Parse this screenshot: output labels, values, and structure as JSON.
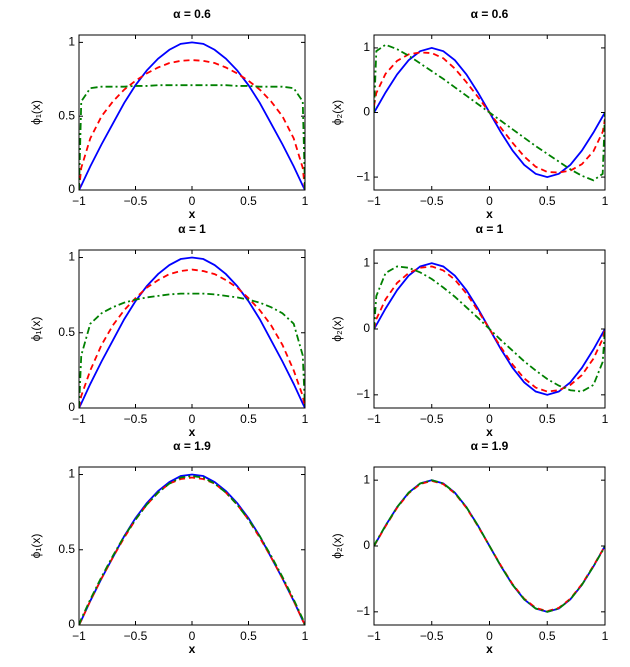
{
  "chart_data": [
    {
      "type": "line",
      "title": "α = 0.6",
      "x_label": "x",
      "y_label": "ϕ₁(x)",
      "x": [
        -1,
        -0.98,
        -0.9,
        -0.8,
        -0.7,
        -0.6,
        -0.5,
        -0.4,
        -0.3,
        -0.2,
        -0.1,
        0,
        0.1,
        0.2,
        0.3,
        0.4,
        0.5,
        0.6,
        0.7,
        0.8,
        0.9,
        0.98,
        1
      ],
      "series": [
        {
          "color": "#0000ff",
          "linestyle": "solid",
          "values": [
            0,
            0.03,
            0.16,
            0.31,
            0.45,
            0.59,
            0.71,
            0.81,
            0.89,
            0.95,
            0.99,
            1,
            0.99,
            0.95,
            0.89,
            0.81,
            0.71,
            0.59,
            0.45,
            0.31,
            0.16,
            0.03,
            0
          ]
        },
        {
          "color": "#ff0000",
          "linestyle": "dashed",
          "values": [
            0,
            0.15,
            0.35,
            0.5,
            0.6,
            0.68,
            0.74,
            0.79,
            0.83,
            0.86,
            0.875,
            0.88,
            0.875,
            0.86,
            0.83,
            0.79,
            0.74,
            0.68,
            0.6,
            0.5,
            0.35,
            0.15,
            0
          ]
        },
        {
          "color": "#008000",
          "linestyle": "dashdot",
          "values": [
            0,
            0.6,
            0.69,
            0.7,
            0.7,
            0.7,
            0.705,
            0.705,
            0.71,
            0.71,
            0.71,
            0.71,
            0.71,
            0.71,
            0.71,
            0.705,
            0.705,
            0.7,
            0.7,
            0.7,
            0.69,
            0.6,
            0
          ]
        }
      ],
      "xlim": [
        -1,
        1
      ],
      "ylim": [
        0,
        1.05
      ],
      "xticks": [
        {
          "value": -1,
          "label": "−1"
        },
        {
          "value": -0.5,
          "label": "−0.5"
        },
        0,
        0.5,
        1
      ],
      "yticks": [
        0,
        0.5,
        1
      ]
    },
    {
      "type": "line",
      "title": "α = 0.6",
      "x_label": "x",
      "y_label": "ϕ₂(x)",
      "x": [
        -1,
        -0.98,
        -0.9,
        -0.8,
        -0.7,
        -0.6,
        -0.5,
        -0.4,
        -0.3,
        -0.2,
        -0.1,
        0,
        0.1,
        0.2,
        0.3,
        0.4,
        0.5,
        0.6,
        0.7,
        0.8,
        0.9,
        0.98,
        1
      ],
      "series": [
        {
          "color": "#0000ff",
          "linestyle": "solid",
          "values": [
            0,
            0.06,
            0.31,
            0.59,
            0.81,
            0.95,
            1,
            0.95,
            0.81,
            0.59,
            0.31,
            0,
            -0.31,
            -0.59,
            -0.81,
            -0.95,
            -1,
            -0.95,
            -0.81,
            -0.59,
            -0.31,
            -0.06,
            0
          ]
        },
        {
          "color": "#ff0000",
          "linestyle": "dashed",
          "values": [
            0.1,
            0.3,
            0.6,
            0.8,
            0.9,
            0.93,
            0.92,
            0.84,
            0.68,
            0.47,
            0.24,
            0,
            -0.24,
            -0.47,
            -0.68,
            -0.84,
            -0.92,
            -0.93,
            -0.9,
            -0.8,
            -0.6,
            -0.3,
            -0.1
          ]
        },
        {
          "color": "#008000",
          "linestyle": "dashdot",
          "values": [
            0,
            0.95,
            1.05,
            0.98,
            0.88,
            0.76,
            0.64,
            0.52,
            0.39,
            0.26,
            0.13,
            0,
            -0.13,
            -0.26,
            -0.39,
            -0.52,
            -0.64,
            -0.76,
            -0.88,
            -0.98,
            -1.05,
            -0.95,
            0
          ]
        }
      ],
      "xlim": [
        -1,
        1
      ],
      "ylim": [
        -1.2,
        1.2
      ],
      "xticks": [
        {
          "value": -1,
          "label": "−1"
        },
        {
          "value": -0.5,
          "label": "−0.5"
        },
        0,
        0.5,
        1
      ],
      "yticks": [
        {
          "value": -1,
          "label": "−1"
        },
        0,
        1
      ]
    },
    {
      "type": "line",
      "title": "α = 1",
      "x_label": "x",
      "y_label": "ϕ₁(x)",
      "x": [
        -1,
        -0.98,
        -0.9,
        -0.8,
        -0.7,
        -0.6,
        -0.5,
        -0.4,
        -0.3,
        -0.2,
        -0.1,
        0,
        0.1,
        0.2,
        0.3,
        0.4,
        0.5,
        0.6,
        0.7,
        0.8,
        0.9,
        0.98,
        1
      ],
      "series": [
        {
          "color": "#0000ff",
          "linestyle": "solid",
          "values": [
            0,
            0.03,
            0.16,
            0.31,
            0.45,
            0.59,
            0.71,
            0.81,
            0.89,
            0.95,
            0.99,
            1,
            0.99,
            0.95,
            0.89,
            0.81,
            0.71,
            0.59,
            0.45,
            0.31,
            0.16,
            0.03,
            0
          ]
        },
        {
          "color": "#ff0000",
          "linestyle": "dashed",
          "values": [
            0,
            0.08,
            0.25,
            0.42,
            0.55,
            0.65,
            0.73,
            0.8,
            0.85,
            0.89,
            0.91,
            0.92,
            0.91,
            0.89,
            0.85,
            0.8,
            0.73,
            0.65,
            0.55,
            0.42,
            0.25,
            0.08,
            0
          ]
        },
        {
          "color": "#008000",
          "linestyle": "dashdot",
          "values": [
            0,
            0.35,
            0.56,
            0.63,
            0.67,
            0.7,
            0.72,
            0.735,
            0.745,
            0.755,
            0.76,
            0.76,
            0.76,
            0.755,
            0.745,
            0.735,
            0.72,
            0.7,
            0.67,
            0.63,
            0.56,
            0.35,
            0
          ]
        }
      ],
      "xlim": [
        -1,
        1
      ],
      "ylim": [
        0,
        1.05
      ],
      "xticks": [
        {
          "value": -1,
          "label": "−1"
        },
        {
          "value": -0.5,
          "label": "−0.5"
        },
        0,
        0.5,
        1
      ],
      "yticks": [
        0,
        0.5,
        1
      ]
    },
    {
      "type": "line",
      "title": "α = 1",
      "x_label": "x",
      "y_label": "ϕ₂(x)",
      "x": [
        -1,
        -0.98,
        -0.9,
        -0.8,
        -0.7,
        -0.6,
        -0.5,
        -0.4,
        -0.3,
        -0.2,
        -0.1,
        0,
        0.1,
        0.2,
        0.3,
        0.4,
        0.5,
        0.6,
        0.7,
        0.8,
        0.9,
        0.98,
        1
      ],
      "series": [
        {
          "color": "#0000ff",
          "linestyle": "solid",
          "values": [
            0,
            0.06,
            0.31,
            0.59,
            0.81,
            0.95,
            1,
            0.95,
            0.81,
            0.59,
            0.31,
            0,
            -0.31,
            -0.59,
            -0.81,
            -0.95,
            -1,
            -0.95,
            -0.81,
            -0.59,
            -0.31,
            -0.06,
            0
          ]
        },
        {
          "color": "#ff0000",
          "linestyle": "dashed",
          "values": [
            0,
            0.15,
            0.45,
            0.7,
            0.85,
            0.93,
            0.95,
            0.89,
            0.75,
            0.54,
            0.28,
            0,
            -0.28,
            -0.54,
            -0.75,
            -0.89,
            -0.95,
            -0.93,
            -0.85,
            -0.7,
            -0.45,
            -0.15,
            0
          ]
        },
        {
          "color": "#008000",
          "linestyle": "dashdot",
          "values": [
            0,
            0.5,
            0.85,
            0.95,
            0.93,
            0.86,
            0.76,
            0.63,
            0.49,
            0.33,
            0.17,
            0,
            -0.17,
            -0.33,
            -0.49,
            -0.63,
            -0.76,
            -0.86,
            -0.93,
            -0.95,
            -0.85,
            -0.5,
            0
          ]
        }
      ],
      "xlim": [
        -1,
        1
      ],
      "ylim": [
        -1.2,
        1.2
      ],
      "xticks": [
        {
          "value": -1,
          "label": "−1"
        },
        {
          "value": -0.5,
          "label": "−0.5"
        },
        0,
        0.5,
        1
      ],
      "yticks": [
        {
          "value": -1,
          "label": "−1"
        },
        0,
        1
      ]
    },
    {
      "type": "line",
      "title": "α = 1.9",
      "x_label": "x",
      "y_label": "ϕ₁(x)",
      "x": [
        -1,
        -0.98,
        -0.9,
        -0.8,
        -0.7,
        -0.6,
        -0.5,
        -0.4,
        -0.3,
        -0.2,
        -0.1,
        0,
        0.1,
        0.2,
        0.3,
        0.4,
        0.5,
        0.6,
        0.7,
        0.8,
        0.9,
        0.98,
        1
      ],
      "series": [
        {
          "color": "#0000ff",
          "linestyle": "solid",
          "values": [
            0,
            0.03,
            0.16,
            0.31,
            0.45,
            0.59,
            0.71,
            0.81,
            0.89,
            0.95,
            0.99,
            1,
            0.99,
            0.95,
            0.89,
            0.81,
            0.71,
            0.59,
            0.45,
            0.31,
            0.16,
            0.03,
            0
          ]
        },
        {
          "color": "#ff0000",
          "linestyle": "dashed",
          "values": [
            0,
            0.03,
            0.16,
            0.31,
            0.45,
            0.58,
            0.7,
            0.8,
            0.88,
            0.94,
            0.97,
            0.98,
            0.97,
            0.94,
            0.88,
            0.8,
            0.7,
            0.58,
            0.45,
            0.31,
            0.16,
            0.03,
            0
          ]
        },
        {
          "color": "#008000",
          "linestyle": "dashdot",
          "values": [
            0,
            0.04,
            0.17,
            0.32,
            0.46,
            0.59,
            0.7,
            0.8,
            0.88,
            0.94,
            0.98,
            0.99,
            0.98,
            0.94,
            0.88,
            0.8,
            0.7,
            0.59,
            0.46,
            0.32,
            0.17,
            0.04,
            0
          ]
        }
      ],
      "xlim": [
        -1,
        1
      ],
      "ylim": [
        0,
        1.05
      ],
      "xticks": [
        {
          "value": -1,
          "label": "−1"
        },
        {
          "value": -0.5,
          "label": "−0.5"
        },
        0,
        0.5,
        1
      ],
      "yticks": [
        0,
        0.5,
        1
      ]
    },
    {
      "type": "line",
      "title": "α = 1.9",
      "x_label": "x",
      "y_label": "ϕ₂(x)",
      "x": [
        -1,
        -0.98,
        -0.9,
        -0.8,
        -0.7,
        -0.6,
        -0.5,
        -0.4,
        -0.3,
        -0.2,
        -0.1,
        0,
        0.1,
        0.2,
        0.3,
        0.4,
        0.5,
        0.6,
        0.7,
        0.8,
        0.9,
        0.98,
        1
      ],
      "series": [
        {
          "color": "#0000ff",
          "linestyle": "solid",
          "values": [
            0,
            0.06,
            0.31,
            0.59,
            0.81,
            0.95,
            1,
            0.95,
            0.81,
            0.59,
            0.31,
            0,
            -0.31,
            -0.59,
            -0.81,
            -0.95,
            -1,
            -0.95,
            -0.81,
            -0.59,
            -0.31,
            -0.06,
            0
          ]
        },
        {
          "color": "#ff0000",
          "linestyle": "dashed",
          "values": [
            0,
            0.06,
            0.3,
            0.58,
            0.8,
            0.94,
            0.99,
            0.94,
            0.8,
            0.58,
            0.3,
            0,
            -0.3,
            -0.58,
            -0.8,
            -0.94,
            -0.99,
            -0.94,
            -0.8,
            -0.58,
            -0.3,
            -0.06,
            0
          ]
        },
        {
          "color": "#008000",
          "linestyle": "dashdot",
          "values": [
            0,
            0.07,
            0.31,
            0.59,
            0.81,
            0.95,
            1,
            0.95,
            0.81,
            0.59,
            0.31,
            0,
            -0.31,
            -0.59,
            -0.81,
            -0.95,
            -1,
            -0.95,
            -0.81,
            -0.59,
            -0.31,
            -0.07,
            0
          ]
        }
      ],
      "xlim": [
        -1,
        1
      ],
      "ylim": [
        -1.2,
        1.2
      ],
      "xticks": [
        {
          "value": -1,
          "label": "−1"
        },
        {
          "value": -0.5,
          "label": "−0.5"
        },
        0,
        0.5,
        1
      ],
      "yticks": [
        {
          "value": -1,
          "label": "−1"
        },
        0,
        1
      ]
    }
  ]
}
